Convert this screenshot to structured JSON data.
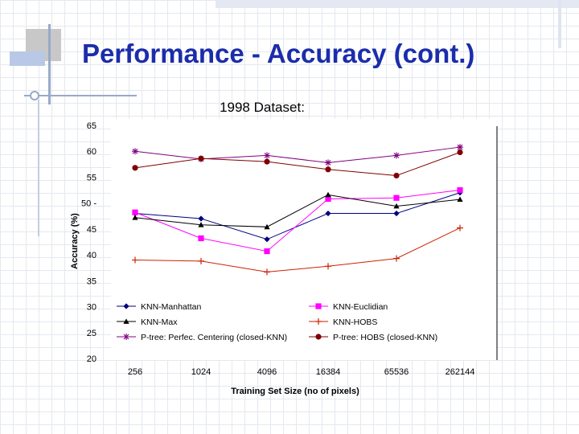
{
  "slide": {
    "title": "Performance - Accuracy (cont.)",
    "subtitle": "1998 Dataset:"
  },
  "chart_data": {
    "type": "line",
    "title": "",
    "xlabel": "Training Set Size (no of pixels)",
    "ylabel": "Accuracy (%)",
    "categories": [
      "256",
      "1024",
      "4096",
      "16384",
      "65536",
      "262144"
    ],
    "yticks": [
      "20",
      "25",
      "30",
      "35",
      "40",
      "45",
      "50 -",
      "55",
      "60",
      "65"
    ],
    "ylim": [
      20,
      65
    ],
    "grid": false,
    "legend_position": "inside-bottom",
    "series": [
      {
        "name": "KNN-Manhattan",
        "values": [
          48.0,
          47.0,
          43.0,
          48.0,
          48.0,
          52.0
        ],
        "color": "#000080",
        "marker": "diamond"
      },
      {
        "name": "KNN-Euclidian",
        "values": [
          48.2,
          43.2,
          40.7,
          50.8,
          51.0,
          52.5
        ],
        "color": "#ff00ff",
        "marker": "square"
      },
      {
        "name": "KNN-Max",
        "values": [
          47.2,
          45.8,
          45.4,
          51.6,
          49.4,
          50.7
        ],
        "color": "#000000",
        "marker": "triangle"
      },
      {
        "name": "KNN-HOBS",
        "values": [
          39.0,
          38.8,
          36.7,
          37.8,
          39.3,
          45.2
        ],
        "color": "#cc2200",
        "marker": "plus"
      },
      {
        "name": "P-tree: Perfec. Centering (closed-KNN)",
        "values": [
          60.0,
          58.5,
          59.2,
          57.8,
          59.2,
          60.8
        ],
        "color": "#800080",
        "marker": "star"
      },
      {
        "name": "P-tree: HOBS (closed-KNN)",
        "values": [
          56.8,
          58.6,
          58.0,
          56.5,
          55.3,
          59.8
        ],
        "color": "#800000",
        "marker": "circle"
      }
    ]
  }
}
